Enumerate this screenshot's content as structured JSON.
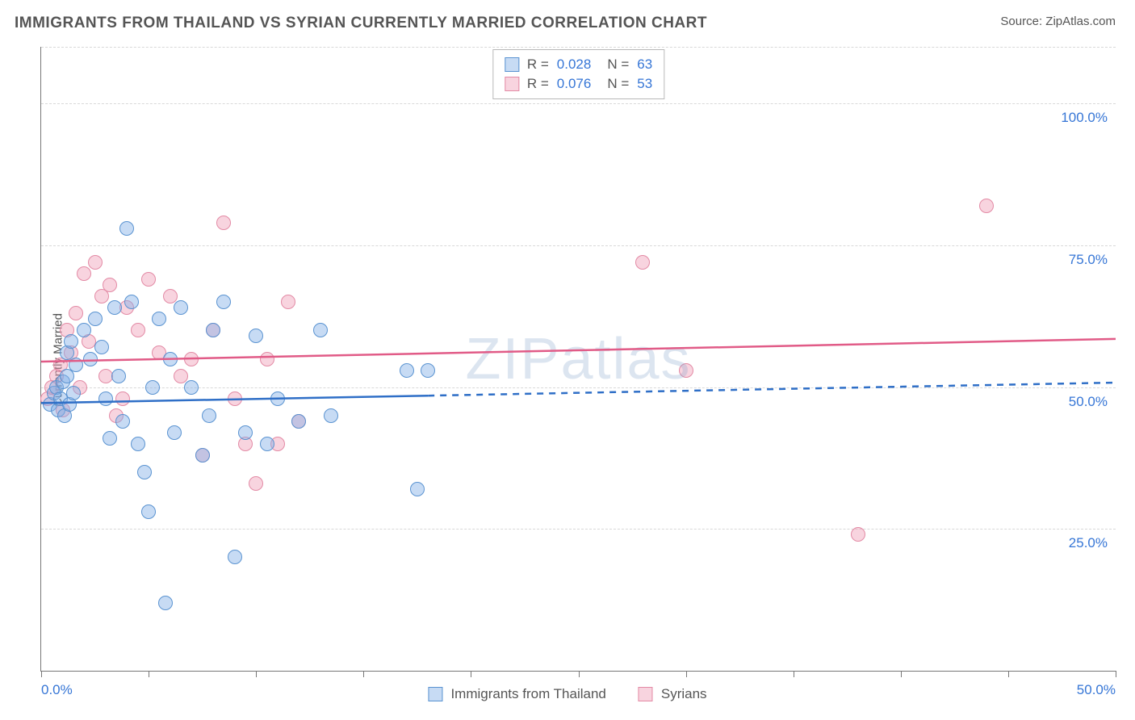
{
  "header": {
    "title": "IMMIGRANTS FROM THAILAND VS SYRIAN CURRENTLY MARRIED CORRELATION CHART",
    "source_prefix": "Source: ",
    "source_name": "ZipAtlas.com"
  },
  "watermark": "ZIPatlas",
  "chart": {
    "type": "scatter",
    "ylabel": "Currently Married",
    "xlim": [
      0,
      50
    ],
    "ylim": [
      0,
      110
    ],
    "y_gridlines": [
      25,
      50,
      75,
      100,
      110
    ],
    "y_tick_labels": {
      "25": "25.0%",
      "50": "50.0%",
      "75": "75.0%",
      "100": "100.0%"
    },
    "x_ticks": [
      0,
      5,
      10,
      15,
      20,
      25,
      30,
      35,
      40,
      45,
      50
    ],
    "x_tick_labels": {
      "0": "0.0%",
      "50": "50.0%"
    },
    "background_color": "#ffffff",
    "grid_color": "#d8d8d8",
    "axis_color": "#777777",
    "point_radius": 9,
    "series": {
      "thailand": {
        "label": "Immigrants from Thailand",
        "fill": "rgba(130,175,230,0.45)",
        "stroke": "#5a93d1",
        "trend": {
          "y_start": 47.2,
          "y_end": 50.8,
          "solid_until_x": 18,
          "color": "#2f6fc7",
          "width": 2.5
        },
        "points": [
          [
            0.4,
            47
          ],
          [
            0.6,
            49
          ],
          [
            0.7,
            50
          ],
          [
            0.8,
            46
          ],
          [
            0.9,
            48
          ],
          [
            1.0,
            51
          ],
          [
            1.1,
            45
          ],
          [
            1.2,
            52
          ],
          [
            1.3,
            47
          ],
          [
            1.5,
            49
          ],
          [
            1.2,
            56
          ],
          [
            1.4,
            58
          ],
          [
            1.6,
            54
          ],
          [
            2.0,
            60
          ],
          [
            2.3,
            55
          ],
          [
            2.5,
            62
          ],
          [
            2.8,
            57
          ],
          [
            3.0,
            48
          ],
          [
            3.2,
            41
          ],
          [
            3.4,
            64
          ],
          [
            3.6,
            52
          ],
          [
            3.8,
            44
          ],
          [
            4.0,
            78
          ],
          [
            4.2,
            65
          ],
          [
            4.5,
            40
          ],
          [
            4.8,
            35
          ],
          [
            5.0,
            28
          ],
          [
            5.2,
            50
          ],
          [
            5.5,
            62
          ],
          [
            5.8,
            12
          ],
          [
            6.0,
            55
          ],
          [
            6.2,
            42
          ],
          [
            6.5,
            64
          ],
          [
            7.0,
            50
          ],
          [
            7.5,
            38
          ],
          [
            7.8,
            45
          ],
          [
            8.0,
            60
          ],
          [
            8.5,
            65
          ],
          [
            9.0,
            20
          ],
          [
            9.5,
            42
          ],
          [
            10.0,
            59
          ],
          [
            10.5,
            40
          ],
          [
            11.0,
            48
          ],
          [
            12.0,
            44
          ],
          [
            13.0,
            60
          ],
          [
            13.5,
            45
          ],
          [
            17.0,
            53
          ],
          [
            17.5,
            32
          ],
          [
            18.0,
            53
          ]
        ]
      },
      "syrians": {
        "label": "Syrians",
        "fill": "rgba(240,160,185,0.45)",
        "stroke": "#e38aa5",
        "trend": {
          "y_start": 54.5,
          "y_end": 58.5,
          "solid_until_x": 50,
          "color": "#e15b87",
          "width": 2.5
        },
        "points": [
          [
            0.3,
            48
          ],
          [
            0.5,
            50
          ],
          [
            0.7,
            52
          ],
          [
            0.9,
            54
          ],
          [
            1.0,
            46
          ],
          [
            1.2,
            60
          ],
          [
            1.4,
            56
          ],
          [
            1.6,
            63
          ],
          [
            1.8,
            50
          ],
          [
            2.0,
            70
          ],
          [
            2.2,
            58
          ],
          [
            2.5,
            72
          ],
          [
            2.8,
            66
          ],
          [
            3.0,
            52
          ],
          [
            3.2,
            68
          ],
          [
            3.5,
            45
          ],
          [
            3.8,
            48
          ],
          [
            4.0,
            64
          ],
          [
            4.5,
            60
          ],
          [
            5.0,
            69
          ],
          [
            5.5,
            56
          ],
          [
            6.0,
            66
          ],
          [
            6.5,
            52
          ],
          [
            7.0,
            55
          ],
          [
            7.5,
            38
          ],
          [
            8.0,
            60
          ],
          [
            8.5,
            79
          ],
          [
            9.0,
            48
          ],
          [
            9.5,
            40
          ],
          [
            10.0,
            33
          ],
          [
            10.5,
            55
          ],
          [
            11.0,
            40
          ],
          [
            11.5,
            65
          ],
          [
            12.0,
            44
          ],
          [
            28.0,
            72
          ],
          [
            30.0,
            53
          ],
          [
            38.0,
            24
          ],
          [
            44.0,
            82
          ]
        ]
      }
    },
    "legend_top": [
      {
        "swatch_fill": "rgba(130,175,230,0.45)",
        "swatch_stroke": "#5a93d1",
        "r_label": "R =",
        "r_val": "0.028",
        "n_label": "N =",
        "n_val": "63"
      },
      {
        "swatch_fill": "rgba(240,160,185,0.45)",
        "swatch_stroke": "#e38aa5",
        "r_label": "R =",
        "r_val": "0.076",
        "n_label": "N =",
        "n_val": "53"
      }
    ]
  }
}
